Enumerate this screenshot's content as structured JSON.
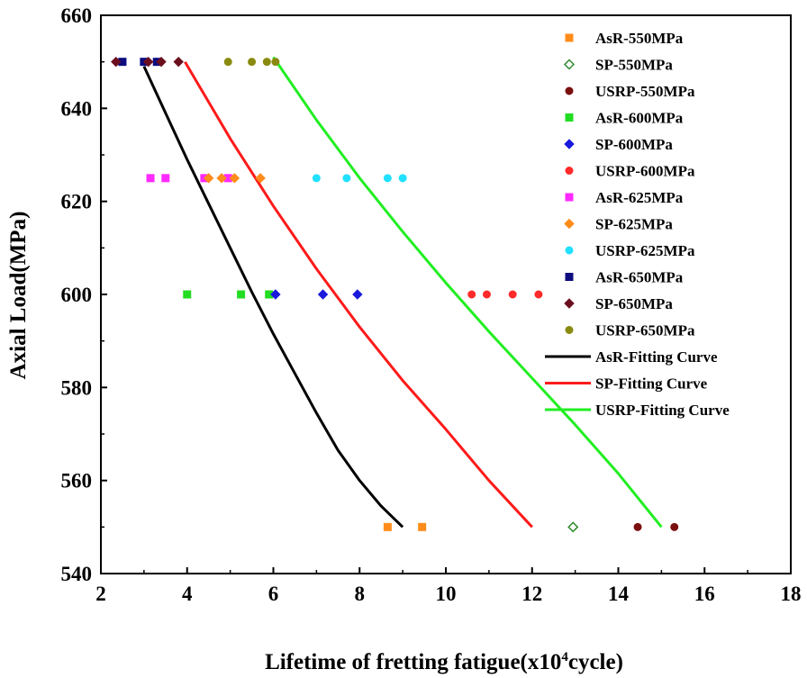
{
  "chart_data": {
    "type": "scatter",
    "xlabel_main": "Lifetime of fretting fatigue(x10",
    "xlabel_sup": "4",
    "xlabel_tail": "cycle)",
    "ylabel": "Axial Load(MPa)",
    "xlim": [
      2,
      18
    ],
    "ylim": [
      540,
      660
    ],
    "xticks": [
      "2",
      "4",
      "6",
      "8",
      "10",
      "12",
      "14",
      "16",
      "18"
    ],
    "yticks": [
      "540",
      "560",
      "580",
      "600",
      "620",
      "640",
      "660"
    ],
    "grid": false,
    "legend_position": "top-right",
    "series": [
      {
        "name": "AsR-550MPa",
        "marker": "square",
        "color": "#ff8c1a",
        "filled": true,
        "points": [
          [
            8.65,
            550
          ],
          [
            9.45,
            550
          ]
        ]
      },
      {
        "name": "SP-550MPa",
        "marker": "diamond",
        "color": "#2e8b2e",
        "filled": false,
        "points": [
          [
            12.95,
            550
          ]
        ]
      },
      {
        "name": "USRP-550MPa",
        "marker": "circle",
        "color": "#7b0f0f",
        "filled": true,
        "points": [
          [
            14.45,
            550
          ],
          [
            15.3,
            550
          ]
        ]
      },
      {
        "name": "AsR-600MPa",
        "marker": "square",
        "color": "#22dd22",
        "filled": true,
        "points": [
          [
            4.0,
            600
          ],
          [
            5.25,
            600
          ],
          [
            5.9,
            600
          ]
        ]
      },
      {
        "name": "SP-600MPa",
        "marker": "diamond",
        "color": "#1a1adc",
        "filled": true,
        "points": [
          [
            6.05,
            600
          ],
          [
            7.15,
            600
          ],
          [
            7.95,
            600
          ]
        ]
      },
      {
        "name": "USRP-600MPa",
        "marker": "circle",
        "color": "#ff2a2a",
        "filled": true,
        "points": [
          [
            10.6,
            600
          ],
          [
            10.95,
            600
          ],
          [
            11.55,
            600
          ],
          [
            12.15,
            600
          ]
        ]
      },
      {
        "name": "AsR-625MPa",
        "marker": "square",
        "color": "#ff2aff",
        "filled": true,
        "points": [
          [
            3.15,
            625
          ],
          [
            3.5,
            625
          ],
          [
            4.4,
            625
          ],
          [
            4.95,
            625
          ]
        ]
      },
      {
        "name": "SP-625MPa",
        "marker": "diamond",
        "color": "#ff8c1a",
        "filled": true,
        "points": [
          [
            4.5,
            625
          ],
          [
            4.8,
            625
          ],
          [
            5.1,
            625
          ],
          [
            5.7,
            625
          ]
        ]
      },
      {
        "name": "USRP-625MPa",
        "marker": "circle",
        "color": "#22e0ff",
        "filled": true,
        "points": [
          [
            7.0,
            625
          ],
          [
            7.7,
            625
          ],
          [
            8.65,
            625
          ],
          [
            9.0,
            625
          ]
        ]
      },
      {
        "name": "AsR-650MPa",
        "marker": "square",
        "color": "#0d0d80",
        "filled": true,
        "points": [
          [
            2.5,
            650
          ],
          [
            3.0,
            650
          ],
          [
            3.3,
            650
          ]
        ]
      },
      {
        "name": "SP-650MPa",
        "marker": "diamond",
        "color": "#6b0f1f",
        "filled": true,
        "points": [
          [
            2.35,
            650
          ],
          [
            3.1,
            650
          ],
          [
            3.4,
            650
          ],
          [
            3.8,
            650
          ]
        ]
      },
      {
        "name": "USRP-650MPa",
        "marker": "circle",
        "color": "#8a8a10",
        "filled": true,
        "points": [
          [
            4.95,
            650
          ],
          [
            5.5,
            650
          ],
          [
            5.85,
            650
          ],
          [
            6.05,
            650
          ]
        ]
      }
    ],
    "curves": [
      {
        "name": "AsR-Fitting Curve",
        "color": "#000000",
        "points": [
          [
            3.0,
            649
          ],
          [
            3.5,
            639
          ],
          [
            4.0,
            629
          ],
          [
            4.5,
            619.5
          ],
          [
            5.0,
            610
          ],
          [
            5.5,
            600.5
          ],
          [
            6.0,
            591.5
          ],
          [
            6.5,
            583
          ],
          [
            7.0,
            574.5
          ],
          [
            7.5,
            566.5
          ],
          [
            8.0,
            560
          ],
          [
            8.5,
            554.5
          ],
          [
            9.0,
            550
          ]
        ]
      },
      {
        "name": "SP-Fitting Curve",
        "color": "#ff1a1a",
        "points": [
          [
            3.95,
            650
          ],
          [
            5.0,
            633.5
          ],
          [
            6.0,
            619
          ],
          [
            7.0,
            605.5
          ],
          [
            8.0,
            593
          ],
          [
            9.0,
            581.5
          ],
          [
            10.0,
            571
          ],
          [
            11.0,
            560
          ],
          [
            12.0,
            550
          ]
        ]
      },
      {
        "name": "USRP-Fitting Curve",
        "color": "#22ee22",
        "points": [
          [
            6.0,
            651
          ],
          [
            7.0,
            637.5
          ],
          [
            8.0,
            625
          ],
          [
            9.0,
            613.5
          ],
          [
            10.0,
            602.5
          ],
          [
            11.0,
            592
          ],
          [
            12.0,
            582
          ],
          [
            13.0,
            572
          ],
          [
            14.0,
            561.5
          ],
          [
            15.0,
            550
          ]
        ]
      }
    ]
  }
}
